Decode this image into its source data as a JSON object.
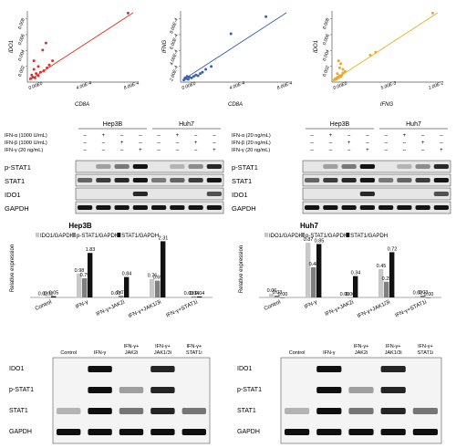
{
  "scatter_panels": [
    {
      "label": "(A)",
      "stat": "P < .001, r = 0.841",
      "ylabel": "IDO1",
      "xlabel": "CD8A",
      "color": "#e0302a",
      "yticks": [
        "0.002",
        "0.004",
        "0.006",
        "0.008"
      ],
      "xticks": [
        "0.00E0",
        "4.00E-4",
        "8.00E-4"
      ]
    },
    {
      "label": "(B)",
      "stat": "P < .001, r = 0.883",
      "ylabel": "IFNG",
      "xlabel": "CD8A",
      "color": "#3a5fb0",
      "yticks": [
        "2.00E-4",
        "4.00E-4",
        "6.00E-4",
        "8.00E-4"
      ],
      "xticks": [
        "0.00E0",
        "4.00E-4",
        "8.00E-4"
      ]
    },
    {
      "label": "(C)",
      "stat": "P < .001, r = 0.956",
      "ylabel": "IDO1",
      "xlabel": "IFNG",
      "color": "#f0a820",
      "yticks": [
        "0.002",
        "0.004",
        "0.006",
        "0.008"
      ],
      "xticks": [
        "0.00E0",
        "5.00E-3",
        "1.00E-2"
      ]
    }
  ],
  "blot_D": {
    "label": "(D)",
    "cells": [
      "Hep3B",
      "Huh7"
    ],
    "treatments": [
      {
        "name": "IFN-α  (1000 U/mL)",
        "marks": [
          "–",
          "+",
          "–",
          "–",
          "–",
          "+",
          "–",
          "–"
        ]
      },
      {
        "name": "IFN-β  (1000 U/mL)",
        "marks": [
          "–",
          "–",
          "+",
          "–",
          "–",
          "–",
          "+",
          "–"
        ]
      },
      {
        "name": "IFN-γ   (20 ng/mL)",
        "marks": [
          "–",
          "–",
          "–",
          "+",
          "–",
          "–",
          "–",
          "+"
        ]
      }
    ],
    "proteins": [
      "p-STAT1",
      "STAT1",
      "IDO1",
      "GAPDH"
    ]
  },
  "blot_E": {
    "label": "(E)",
    "cells": [
      "Hep3B",
      "Huh7"
    ],
    "treatments": [
      {
        "name": "IFN-α  (20 ng/mL)",
        "marks": [
          "–",
          "+",
          "–",
          "–",
          "–",
          "+",
          "–",
          "–"
        ]
      },
      {
        "name": "IFN-β  (20 ng/mL)",
        "marks": [
          "–",
          "–",
          "+",
          "–",
          "–",
          "–",
          "+",
          "–"
        ]
      },
      {
        "name": "IFN-γ  (20 ng/mL)",
        "marks": [
          "–",
          "–",
          "–",
          "+",
          "–",
          "–",
          "–",
          "+"
        ]
      }
    ],
    "proteins": [
      "p-STAT1",
      "STAT1",
      "IDO1",
      "GAPDH"
    ]
  },
  "chart_data": [
    {
      "type": "bar",
      "label": "(F)",
      "title": "Hep3B",
      "ylabel": "Relative expression",
      "categories": [
        "Control",
        "IFN-γ",
        "IFN-γ+JAK2i",
        "IFN-γ+JAK1/3i",
        "IFN-γ+STAT1i"
      ],
      "series": [
        {
          "name": "IDO1/GAPDH",
          "color": "#c8c8c8",
          "values": [
            0.02,
            0.98,
            0.03,
            0.76,
            0.03
          ]
        },
        {
          "name": "p-STAT1/GAPDH",
          "color": "#808080",
          "values": [
            0.02,
            0.79,
            0.07,
            0.69,
            0.04
          ]
        },
        {
          "name": "STAT1/GAPDH",
          "color": "#111111",
          "values": [
            0.05,
            1.83,
            0.84,
            2.31,
            0.04
          ]
        }
      ]
    },
    {
      "type": "bar",
      "label": "(G)",
      "title": "Huh7",
      "ylabel": "Relative expression",
      "categories": [
        "Control",
        "IFN-γ",
        "IFN-γ+JAK2i",
        "IFN-γ+JAK1/3i",
        "IFN-γ+STAT1i"
      ],
      "series": [
        {
          "name": "IDO1/GAPDH",
          "color": "#c8c8c8",
          "values": [
            0.06,
            0.87,
            0.0,
            0.45,
            0.02
          ]
        },
        {
          "name": "p-STAT1/GAPDH",
          "color": "#808080",
          "values": [
            0.03,
            0.48,
            0.0,
            0.25,
            0.03
          ]
        },
        {
          "name": "STAT1/GAPDH",
          "color": "#111111",
          "values": [
            0.0,
            0.85,
            0.34,
            0.72,
            0.0
          ]
        }
      ]
    }
  ],
  "inhibitor_blots": [
    {
      "columns": [
        "Control",
        "IFN-γ",
        "IFN-γ+ JAK2i",
        "IFN-γ+ JAK1/3i",
        "IFN-γ+ STAT1i"
      ],
      "proteins": [
        "IDO1",
        "p-STAT1",
        "STAT1",
        "GAPDH"
      ]
    },
    {
      "columns": [
        "Control",
        "IFN-γ",
        "IFN-γ+ JAK2i",
        "IFN-γ+ JAK1/3i",
        "IFN-γ+ STAT1i"
      ],
      "proteins": [
        "IDO1",
        "p-STAT1",
        "STAT1",
        "GAPDH"
      ]
    }
  ]
}
